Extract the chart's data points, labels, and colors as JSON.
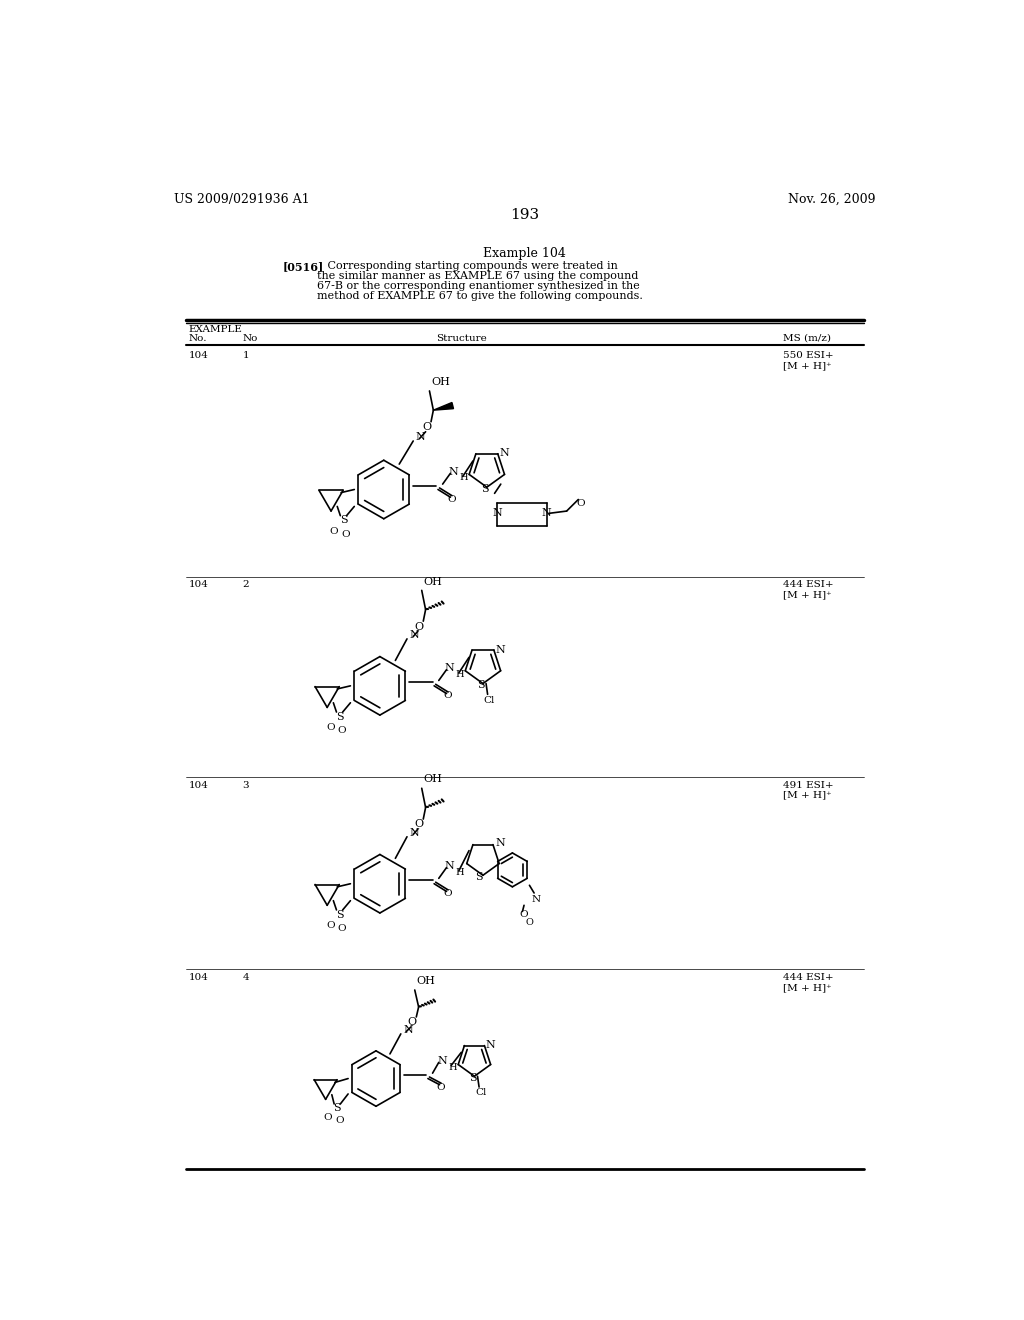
{
  "page_num": "193",
  "left_header": "US 2009/0291936 A1",
  "right_header": "Nov. 26, 2009",
  "example_title": "Example 104",
  "paragraph_bold": "[0516]",
  "paragraph_text": "   Corresponding starting compounds were treated in\nthe similar manner as EXAMPLE 67 using the compound\n67-B or the corresponding enantiomer synthesized in the\nmethod of EXAMPLE 67 to give the following compounds.",
  "bg_color": "#ffffff",
  "text_color": "#000000"
}
